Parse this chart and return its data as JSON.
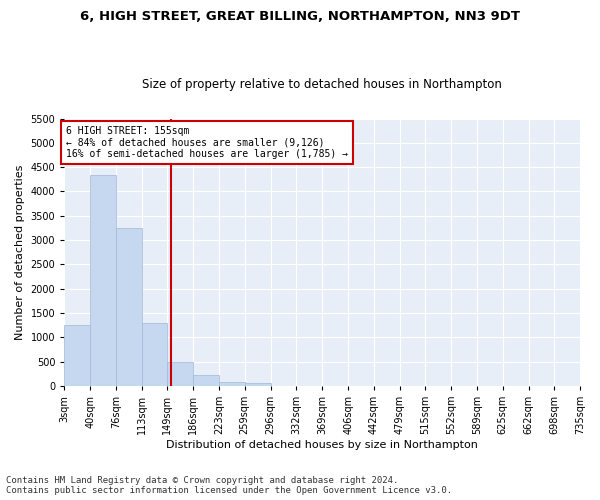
{
  "title1": "6, HIGH STREET, GREAT BILLING, NORTHAMPTON, NN3 9DT",
  "title2": "Size of property relative to detached houses in Northampton",
  "xlabel": "Distribution of detached houses by size in Northampton",
  "ylabel": "Number of detached properties",
  "footer1": "Contains HM Land Registry data © Crown copyright and database right 2024.",
  "footer2": "Contains public sector information licensed under the Open Government Licence v3.0.",
  "annotation_line1": "6 HIGH STREET: 155sqm",
  "annotation_line2": "← 84% of detached houses are smaller (9,126)",
  "annotation_line3": "16% of semi-detached houses are larger (1,785) →",
  "property_sqm": 155,
  "bar_edges": [
    3,
    40,
    76,
    113,
    149,
    186,
    223,
    259,
    296,
    332,
    369,
    406,
    442,
    479,
    515,
    552,
    589,
    625,
    662,
    698,
    735
  ],
  "bar_heights": [
    1263,
    4330,
    3258,
    1291,
    487,
    215,
    88,
    57,
    0,
    0,
    0,
    0,
    0,
    0,
    0,
    0,
    0,
    0,
    0,
    0
  ],
  "bar_color": "#c5d8f0",
  "bar_edgecolor": "#a0b8d8",
  "vline_color": "#cc0000",
  "vline_x": 155,
  "ylim": [
    0,
    5500
  ],
  "yticks": [
    0,
    500,
    1000,
    1500,
    2000,
    2500,
    3000,
    3500,
    4000,
    4500,
    5000,
    5500
  ],
  "background_color": "#e8eef8",
  "grid_color": "#ffffff",
  "annotation_box_color": "#cc0000",
  "title_fontsize": 9.5,
  "subtitle_fontsize": 8.5,
  "axis_label_fontsize": 8,
  "tick_fontsize": 7,
  "footer_fontsize": 6.5
}
